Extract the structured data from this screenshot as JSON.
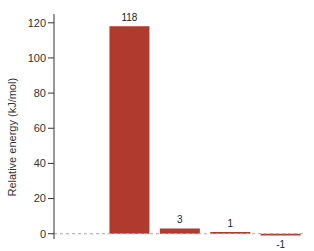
{
  "chart_data": {
    "type": "bar",
    "y_label": "Relative energy (kJ/mol)",
    "categories": [
      null,
      null,
      null,
      null,
      null
    ],
    "values": [
      0,
      118,
      3,
      1,
      -1
    ],
    "color": "#b03a2e",
    "ylim": [
      -3,
      125
    ],
    "yticks": [
      0,
      20,
      40,
      60,
      80,
      100,
      120
    ],
    "grid": false,
    "data_labels": true,
    "tick_labels": "y"
  }
}
